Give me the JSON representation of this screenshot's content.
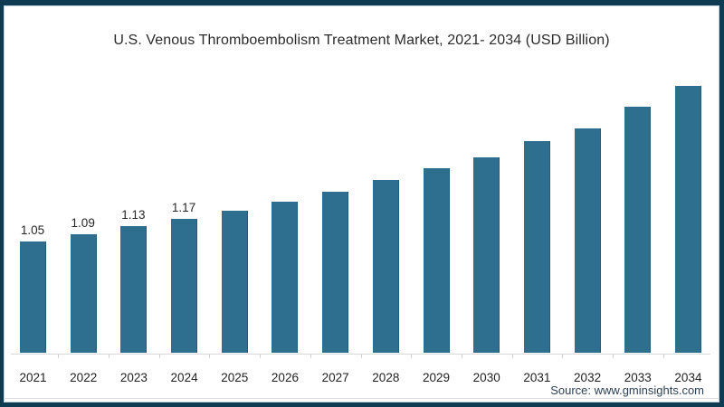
{
  "page": {
    "title": "U.S. Venous Thromboembolism Treatment Market, 2021- 2034 (USD Billion)",
    "source_credit": "Source: www.gminsights.com"
  },
  "chart_data": {
    "type": "bar",
    "title": "U.S. Venous Thromboembolism Treatment Market, 2021- 2034 (USD Billion)",
    "categories": [
      "2021",
      "2022",
      "2023",
      "2024",
      "2025",
      "2026",
      "2027",
      "2028",
      "2029",
      "2030",
      "2031",
      "2032",
      "2033",
      "2034"
    ],
    "values": [
      1.05,
      1.09,
      1.13,
      1.17,
      1.21,
      1.26,
      1.31,
      1.37,
      1.43,
      1.49,
      1.57,
      1.64,
      1.75,
      1.86
    ],
    "data_labels": [
      "1.05",
      "1.09",
      "1.13",
      "1.17",
      "",
      "",
      "",
      "",
      "",
      "",
      "",
      "",
      "",
      ""
    ],
    "values_note": "only 2021-2024 bars carry printed data labels; later values estimated from bar heights",
    "xlabel": "",
    "ylabel": "",
    "ylim_rendered": [
      0.475,
      1.9
    ],
    "grid": false,
    "legend": false,
    "bar_color": "#2e6e8e",
    "bar_edge_color": "#1f5a77",
    "axis_line_color": "#d9d9d9",
    "frame_border_color": "#0e3a52",
    "source": "Source: www.gminsights.com"
  }
}
